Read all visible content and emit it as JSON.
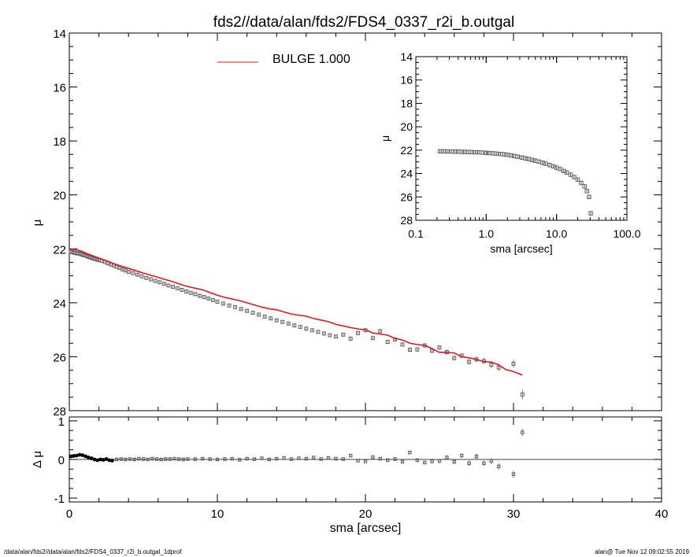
{
  "title": "fds2//data/alan/fds2/FDS4_0337_r2i_b.outgal",
  "footer": {
    "left": "/data/alan/fds2//data/alan/fds2/FDS4_0337_r2i_b.outgal_1dprof",
    "right": "alan@  Tue Nov 12 09:02:55 2019"
  },
  "chart_data": [
    {
      "type": "scatter",
      "panel": "main profile",
      "ylabel": "μ",
      "xlabel": "sma [arcsec]",
      "xlim": [
        0,
        40
      ],
      "ylim": [
        28,
        14
      ],
      "y_inverted": true,
      "x_ticks": [
        "0",
        "10",
        "20",
        "30",
        "40"
      ],
      "y_ticks": [
        "14",
        "16",
        "18",
        "20",
        "22",
        "24",
        "26",
        "28"
      ],
      "legend": {
        "label": "BULGE  1.000",
        "color": "#e8141e",
        "placement": "top-left"
      },
      "series": [
        {
          "name": "data",
          "marker": "open-square",
          "color": "#555555",
          "x": [
            0.1,
            0.2,
            0.3,
            0.4,
            0.5,
            0.6,
            0.7,
            0.8,
            0.9,
            1.0,
            1.1,
            1.2,
            1.3,
            1.4,
            1.5,
            1.6,
            1.7,
            1.8,
            1.9,
            2.0,
            2.2,
            2.4,
            2.6,
            2.8,
            3.0,
            3.2,
            3.4,
            3.6,
            3.8,
            4.0,
            4.3,
            4.6,
            4.9,
            5.2,
            5.5,
            5.8,
            6.1,
            6.4,
            6.7,
            7.0,
            7.3,
            7.6,
            7.9,
            8.2,
            8.5,
            8.8,
            9.1,
            9.4,
            9.7,
            10.0,
            10.4,
            10.8,
            11.2,
            11.6,
            12.0,
            12.4,
            12.8,
            13.2,
            13.6,
            14.0,
            14.4,
            14.8,
            15.2,
            15.6,
            16.0,
            16.4,
            16.8,
            17.2,
            17.6,
            18.0,
            18.5,
            19.0,
            19.5,
            20.0,
            20.5,
            21.0,
            21.5,
            22.0,
            22.5,
            23.0,
            23.5,
            24.0,
            24.5,
            25.0,
            25.5,
            26.0,
            26.5,
            27.0,
            27.5,
            28.0,
            28.5,
            29.0,
            30.0,
            30.6
          ],
          "y": [
            22.1,
            22.12,
            22.14,
            22.15,
            22.17,
            22.16,
            22.18,
            22.2,
            22.22,
            22.24,
            22.25,
            22.27,
            22.3,
            22.31,
            22.33,
            22.35,
            22.37,
            22.38,
            22.4,
            22.42,
            22.45,
            22.49,
            22.53,
            22.58,
            22.62,
            22.67,
            22.71,
            22.76,
            22.8,
            22.85,
            22.9,
            22.96,
            23.02,
            23.08,
            23.13,
            23.19,
            23.24,
            23.3,
            23.36,
            23.41,
            23.46,
            23.52,
            23.58,
            23.63,
            23.68,
            23.74,
            23.79,
            23.84,
            23.9,
            23.96,
            24.03,
            24.1,
            24.16,
            24.23,
            24.3,
            24.37,
            24.44,
            24.51,
            24.58,
            24.65,
            24.71,
            24.77,
            24.84,
            24.9,
            24.96,
            25.02,
            25.08,
            25.14,
            25.2,
            25.25,
            25.18,
            25.33,
            25.12,
            25.02,
            25.31,
            25.05,
            25.45,
            25.36,
            25.55,
            25.74,
            25.73,
            25.58,
            25.78,
            25.66,
            25.83,
            26.05,
            25.96,
            26.19,
            26.1,
            26.16,
            26.3,
            26.4,
            26.26,
            27.4
          ],
          "yerr": [
            0.02,
            0.02,
            0.02,
            0.02,
            0.02,
            0.02,
            0.02,
            0.02,
            0.02,
            0.02,
            0.02,
            0.02,
            0.02,
            0.02,
            0.02,
            0.02,
            0.02,
            0.02,
            0.02,
            0.02,
            0.02,
            0.02,
            0.02,
            0.02,
            0.02,
            0.02,
            0.02,
            0.02,
            0.02,
            0.02,
            0.03,
            0.03,
            0.03,
            0.03,
            0.03,
            0.03,
            0.03,
            0.03,
            0.03,
            0.03,
            0.03,
            0.03,
            0.03,
            0.03,
            0.03,
            0.03,
            0.03,
            0.03,
            0.03,
            0.03,
            0.04,
            0.04,
            0.04,
            0.04,
            0.04,
            0.04,
            0.04,
            0.04,
            0.04,
            0.04,
            0.04,
            0.04,
            0.04,
            0.04,
            0.04,
            0.05,
            0.05,
            0.05,
            0.05,
            0.05,
            0.06,
            0.06,
            0.06,
            0.06,
            0.06,
            0.07,
            0.07,
            0.07,
            0.07,
            0.08,
            0.08,
            0.08,
            0.08,
            0.09,
            0.09,
            0.1,
            0.1,
            0.1,
            0.11,
            0.12,
            0.12,
            0.13,
            0.15,
            0.18
          ]
        },
        {
          "name": "BULGE  1.000",
          "style": "line",
          "color": "#e8141e",
          "x": [
            0.0,
            0.3,
            0.6,
            0.9,
            1.2,
            1.5,
            1.8,
            2.1,
            2.4,
            2.7,
            3.0,
            3.5,
            4.0,
            4.5,
            5.0,
            5.5,
            6.0,
            6.5,
            7.0,
            7.5,
            8.0,
            8.5,
            9.0,
            9.5,
            10.0,
            10.5,
            11.0,
            11.5,
            12.0,
            12.5,
            13.0,
            13.5,
            14.0,
            14.5,
            15.0,
            15.5,
            16.0,
            16.5,
            17.0,
            17.5,
            18.0,
            18.5,
            19.0,
            19.5,
            20.0,
            20.5,
            21.0,
            21.5,
            22.0,
            22.5,
            23.0,
            23.5,
            24.0,
            24.5,
            25.0,
            25.5,
            26.0,
            26.5,
            27.0,
            27.5,
            28.0,
            28.5,
            29.0,
            29.5,
            30.0,
            30.6
          ],
          "y": [
            22.0,
            22.02,
            22.05,
            22.1,
            22.18,
            22.24,
            22.3,
            22.36,
            22.42,
            22.48,
            22.55,
            22.64,
            22.72,
            22.81,
            22.9,
            22.98,
            23.06,
            23.14,
            23.22,
            23.32,
            23.4,
            23.46,
            23.52,
            23.62,
            23.72,
            23.8,
            23.86,
            23.92,
            24.0,
            24.08,
            24.16,
            24.22,
            24.26,
            24.34,
            24.42,
            24.46,
            24.5,
            24.58,
            24.64,
            24.7,
            24.8,
            24.86,
            24.92,
            24.97,
            25.0,
            25.12,
            25.16,
            25.2,
            25.32,
            25.38,
            25.5,
            25.55,
            25.58,
            25.7,
            25.84,
            25.84,
            25.86,
            26.0,
            26.04,
            26.1,
            26.18,
            26.2,
            26.3,
            26.48,
            26.55,
            26.68
          ]
        }
      ]
    },
    {
      "type": "scatter",
      "panel": "inset log profile",
      "ylabel": "μ",
      "xlabel": "sma [arcsec]",
      "x_scale": "log",
      "xlim": [
        0.1,
        100.0
      ],
      "ylim": [
        28,
        14
      ],
      "y_inverted": true,
      "x_ticks": [
        "0.1",
        "1.0",
        "10.0",
        "100.0"
      ],
      "y_ticks": [
        "14",
        "16",
        "18",
        "20",
        "22",
        "24",
        "26",
        "28"
      ],
      "series": [
        {
          "name": "data",
          "marker": "open-square",
          "color": "#555555",
          "x": [
            0.22,
            0.25,
            0.28,
            0.32,
            0.36,
            0.4,
            0.45,
            0.5,
            0.56,
            0.63,
            0.7,
            0.8,
            0.9,
            1.0,
            1.1,
            1.25,
            1.4,
            1.6,
            1.8,
            2.0,
            2.25,
            2.5,
            2.8,
            3.2,
            3.6,
            4.0,
            4.5,
            5.0,
            5.6,
            6.3,
            7.0,
            8.0,
            9.0,
            10.0,
            11.2,
            12.6,
            14.0,
            15.8,
            17.8,
            20.0,
            22.4,
            25.0,
            27.0,
            29.0,
            30.6
          ],
          "y": [
            22.1,
            22.1,
            22.11,
            22.12,
            22.12,
            22.13,
            22.14,
            22.15,
            22.16,
            22.17,
            22.18,
            22.19,
            22.21,
            22.23,
            22.25,
            22.27,
            22.3,
            22.33,
            22.36,
            22.4,
            22.45,
            22.5,
            22.56,
            22.63,
            22.7,
            22.76,
            22.83,
            22.9,
            22.98,
            23.08,
            23.16,
            23.28,
            23.39,
            23.5,
            23.62,
            23.78,
            23.92,
            24.1,
            24.3,
            24.52,
            24.8,
            25.1,
            25.5,
            26.0,
            27.4
          ]
        }
      ]
    },
    {
      "type": "scatter",
      "panel": "residuals",
      "ylabel": "Δ μ",
      "xlabel": "sma [arcsec]",
      "xlim": [
        0,
        40
      ],
      "ylim": [
        -1.1,
        1.1
      ],
      "x_ticks": [
        "0",
        "10",
        "20",
        "30",
        "40"
      ],
      "y_ticks": [
        "1",
        "0",
        "-1"
      ],
      "zero_line": true,
      "series": [
        {
          "name": "residual",
          "marker": "open-square",
          "color": "#555555",
          "x": [
            0.1,
            0.3,
            0.5,
            0.7,
            0.9,
            1.1,
            1.3,
            1.5,
            1.7,
            1.9,
            2.1,
            2.3,
            2.5,
            2.7,
            2.9,
            3.2,
            3.5,
            3.8,
            4.1,
            4.4,
            4.7,
            5.0,
            5.3,
            5.6,
            5.9,
            6.2,
            6.5,
            6.8,
            7.1,
            7.4,
            7.7,
            8.0,
            8.5,
            9.0,
            9.5,
            10.0,
            10.5,
            11.0,
            11.5,
            12.0,
            12.5,
            13.0,
            13.5,
            14.0,
            14.5,
            15.0,
            15.5,
            16.0,
            16.5,
            17.0,
            17.5,
            18.0,
            18.5,
            19.0,
            19.5,
            20.0,
            20.5,
            21.0,
            21.5,
            22.0,
            22.5,
            23.0,
            23.5,
            24.0,
            24.5,
            25.0,
            25.5,
            26.0,
            26.5,
            27.0,
            27.5,
            28.0,
            28.5,
            29.0,
            30.0,
            30.6
          ],
          "y": [
            0.08,
            0.09,
            0.1,
            0.12,
            0.11,
            0.08,
            0.05,
            0.03,
            0.0,
            -0.02,
            0.0,
            -0.01,
            0.01,
            -0.02,
            -0.03,
            0.0,
            0.01,
            0.0,
            0.01,
            0.0,
            0.02,
            0.01,
            0.0,
            0.02,
            0.01,
            0.0,
            0.01,
            0.01,
            0.02,
            0.01,
            0.0,
            0.01,
            0.01,
            0.02,
            0.01,
            0.0,
            0.01,
            0.02,
            -0.01,
            0.02,
            0.01,
            0.03,
            0.0,
            0.02,
            0.04,
            0.01,
            0.03,
            0.02,
            0.05,
            0.01,
            0.04,
            0.02,
            0.01,
            0.1,
            -0.03,
            -0.05,
            0.06,
            0.02,
            -0.02,
            0.01,
            -0.06,
            0.18,
            -0.02,
            -0.08,
            -0.05,
            -0.04,
            0.05,
            -0.06,
            0.1,
            -0.1,
            0.08,
            -0.1,
            -0.04,
            -0.18,
            -0.38,
            0.7
          ],
          "yerr": [
            0.01,
            0.01,
            0.01,
            0.01,
            0.01,
            0.01,
            0.01,
            0.01,
            0.01,
            0.01,
            0.01,
            0.01,
            0.01,
            0.01,
            0.01,
            0.01,
            0.01,
            0.01,
            0.01,
            0.01,
            0.01,
            0.01,
            0.01,
            0.01,
            0.01,
            0.01,
            0.01,
            0.01,
            0.01,
            0.01,
            0.01,
            0.01,
            0.01,
            0.01,
            0.01,
            0.02,
            0.02,
            0.02,
            0.02,
            0.02,
            0.02,
            0.02,
            0.02,
            0.02,
            0.02,
            0.02,
            0.02,
            0.03,
            0.03,
            0.03,
            0.03,
            0.03,
            0.03,
            0.04,
            0.04,
            0.04,
            0.04,
            0.04,
            0.04,
            0.05,
            0.05,
            0.05,
            0.05,
            0.05,
            0.05,
            0.06,
            0.06,
            0.06,
            0.06,
            0.07,
            0.07,
            0.07,
            0.08,
            0.08,
            0.09,
            0.1
          ]
        }
      ]
    }
  ]
}
